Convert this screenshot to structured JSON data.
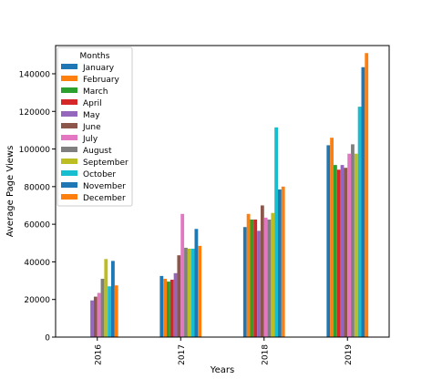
{
  "chart_data": {
    "type": "bar",
    "title": "",
    "xlabel": "Years",
    "ylabel": "Average Page Views",
    "categories": [
      "2016",
      "2017",
      "2018",
      "2019"
    ],
    "ylim": [
      0,
      155000
    ],
    "yticks": [
      0,
      20000,
      40000,
      60000,
      80000,
      100000,
      120000,
      140000
    ],
    "ytick_labels": [
      "0",
      "20000",
      "40000",
      "60000",
      "80000",
      "100000",
      "120000",
      "140000"
    ],
    "grid": false,
    "legend": {
      "title": "Months",
      "placement": "top-left"
    },
    "series": [
      {
        "name": "January",
        "color": "#1f77b4",
        "values": [
          null,
          32500,
          58500,
          102000
        ]
      },
      {
        "name": "February",
        "color": "#ff7f0e",
        "values": [
          null,
          31000,
          65500,
          106000
        ]
      },
      {
        "name": "March",
        "color": "#2ca02c",
        "values": [
          null,
          29500,
          62500,
          91500
        ]
      },
      {
        "name": "April",
        "color": "#d62728",
        "values": [
          null,
          30500,
          62500,
          89000
        ]
      },
      {
        "name": "May",
        "color": "#9467bd",
        "values": [
          19500,
          34000,
          56500,
          91500
        ]
      },
      {
        "name": "June",
        "color": "#8c564b",
        "values": [
          21500,
          43500,
          70000,
          90000
        ]
      },
      {
        "name": "July",
        "color": "#e377c2",
        "values": [
          23500,
          65500,
          63500,
          97500
        ]
      },
      {
        "name": "August",
        "color": "#7f7f7f",
        "values": [
          31000,
          47500,
          62500,
          102500
        ]
      },
      {
        "name": "September",
        "color": "#bcbd22",
        "values": [
          41500,
          47000,
          66000,
          97500
        ]
      },
      {
        "name": "October",
        "color": "#17becf",
        "values": [
          27000,
          47000,
          111500,
          122500
        ]
      },
      {
        "name": "November",
        "color": "#1f77b4",
        "values": [
          40500,
          57500,
          78500,
          143500
        ]
      },
      {
        "name": "December",
        "color": "#ff7f0e",
        "values": [
          27500,
          48500,
          80000,
          151000
        ]
      }
    ]
  }
}
